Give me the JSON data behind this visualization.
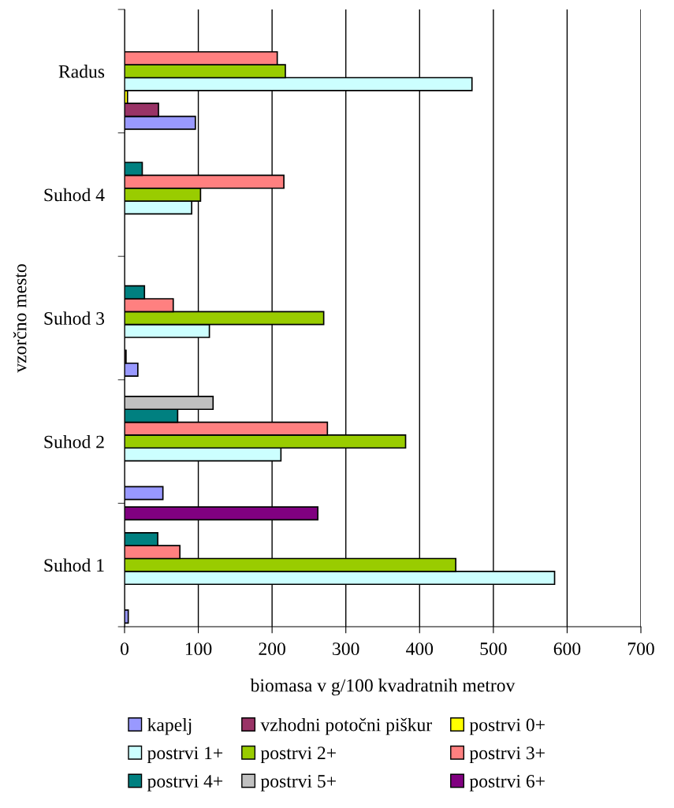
{
  "chart_data": {
    "type": "bar",
    "orientation": "horizontal",
    "xlabel": "biomasa v g/100 kvadratnih metrov",
    "ylabel": "vzorčno mesto",
    "categories": [
      "Radus",
      "Suhod 4",
      "Suhod 3",
      "Suhod 2",
      "Suhod 1"
    ],
    "series": [
      {
        "name": "kapelj",
        "color": "#9999ff",
        "values": [
          96,
          null,
          18,
          52,
          5
        ]
      },
      {
        "name": "vzhodni potočni piškur",
        "color": "#993366",
        "values": [
          46,
          null,
          2,
          null,
          null
        ]
      },
      {
        "name": "postrvi 0+",
        "color": "#ffff00",
        "values": [
          4,
          null,
          null,
          null,
          null
        ]
      },
      {
        "name": "postrvi 1+",
        "color": "#ccffff",
        "values": [
          471,
          91,
          115,
          212,
          583
        ]
      },
      {
        "name": "postrvi 2+",
        "color": "#99cc00",
        "values": [
          218,
          103,
          270,
          381,
          449
        ]
      },
      {
        "name": "postrvi 3+",
        "color": "#ff8080",
        "values": [
          207,
          216,
          66,
          275,
          75
        ]
      },
      {
        "name": "postrvi 4+",
        "color": "#008080",
        "values": [
          null,
          24,
          27,
          72,
          45
        ]
      },
      {
        "name": "postrvi 5+",
        "color": "#c0c0c0",
        "values": [
          null,
          null,
          null,
          120,
          null
        ]
      },
      {
        "name": "postrvi 6+",
        "color": "#800080",
        "values": [
          null,
          null,
          null,
          null,
          262
        ]
      }
    ],
    "xlim": [
      0,
      700
    ],
    "xticks": [
      0,
      100,
      200,
      300,
      400,
      500,
      600,
      700
    ],
    "grid": "x",
    "legend": "bottom"
  }
}
